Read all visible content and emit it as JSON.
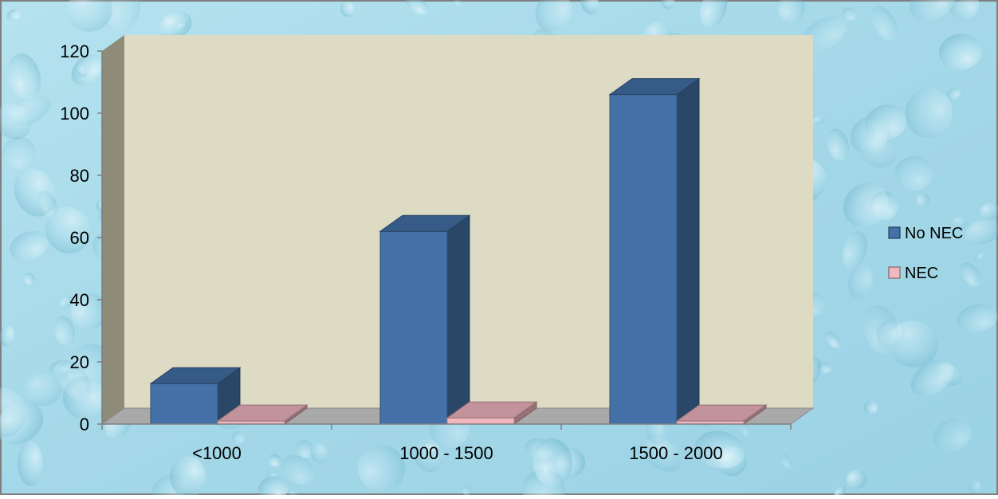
{
  "chart_data": {
    "type": "bar",
    "categories": [
      "<1000",
      "1000 - 1500",
      "1500 - 2000"
    ],
    "series": [
      {
        "name": "No NEC",
        "values": [
          13,
          62,
          106
        ],
        "color": "#4472A8"
      },
      {
        "name": "NEC",
        "values": [
          1,
          2,
          1
        ],
        "color": "#F2B8C0"
      }
    ],
    "yticks": [
      "0",
      "20",
      "40",
      "60",
      "80",
      "100",
      "120"
    ],
    "ylim": [
      0,
      120
    ],
    "grid": false,
    "legend": "right",
    "colors": {
      "wall": "#DEDBC5",
      "wall_side": "#8E8C78",
      "floor": "#A9A9A9",
      "background": "#A9DCEB",
      "frame": "#7F7F7F"
    }
  }
}
